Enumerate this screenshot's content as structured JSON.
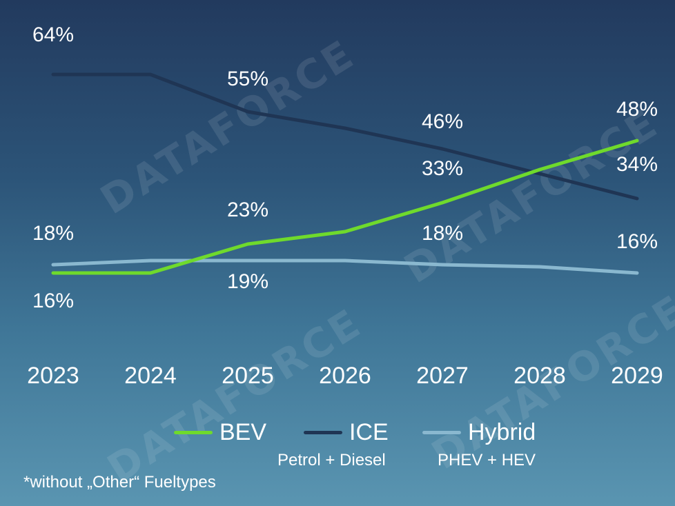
{
  "chart_data": {
    "type": "line",
    "categories": [
      "2023",
      "2024",
      "2025",
      "2026",
      "2027",
      "2028",
      "2029"
    ],
    "ylim": [
      0,
      70
    ],
    "grid": false,
    "legend_placement": "bottom",
    "series": [
      {
        "name": "BEV",
        "sublabel": "",
        "color": "#6fda2c",
        "values": [
          16,
          16,
          23,
          26,
          33,
          41,
          48
        ],
        "data_labels": {
          "0": "16%",
          "2": "23%",
          "4": "33%",
          "6": "48%"
        }
      },
      {
        "name": "ICE",
        "sublabel": "Petrol + Diesel",
        "color": "#1f3554",
        "values": [
          64,
          64,
          55,
          51,
          46,
          40,
          34
        ],
        "data_labels": {
          "0": "64%",
          "2": "55%",
          "4": "46%",
          "6": "34%"
        }
      },
      {
        "name": "Hybrid",
        "sublabel": "PHEV + HEV",
        "color": "#8ab8cf",
        "values": [
          18,
          19,
          19,
          19,
          18,
          17.5,
          16
        ],
        "data_labels": {
          "0": "18%",
          "2": "19%",
          "4": "18%",
          "6": "16%"
        }
      }
    ]
  },
  "watermark": "DATAFORCE",
  "footnote": "*without „Other“ Fueltypes"
}
